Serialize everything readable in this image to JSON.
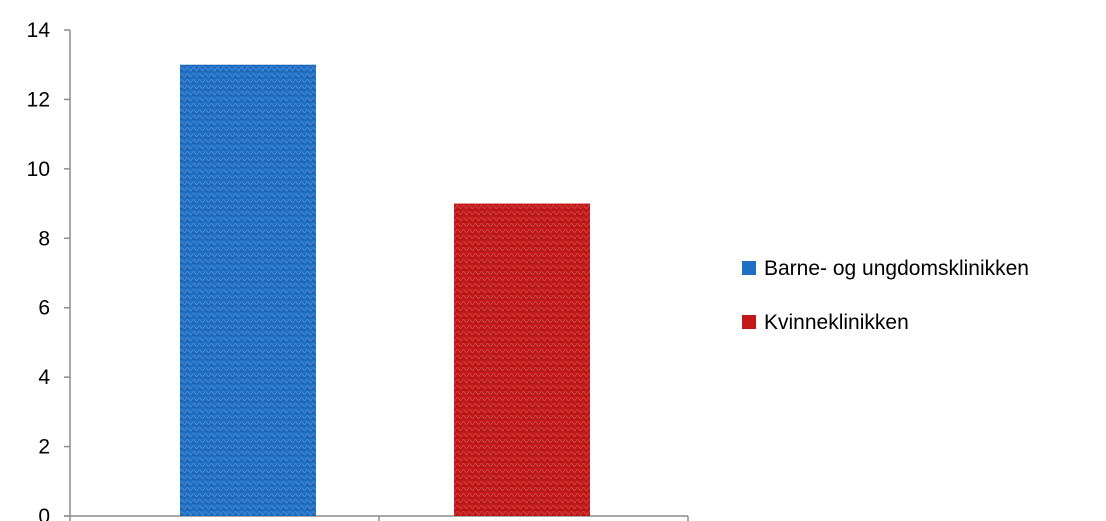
{
  "chart_data": {
    "type": "bar",
    "title": "",
    "xlabel": "",
    "ylabel": "",
    "ylim": [
      0,
      14
    ],
    "yticks": [
      0,
      2,
      4,
      6,
      8,
      10,
      12,
      14
    ],
    "grid": false,
    "legend_position": "right",
    "series": [
      {
        "name": "Barne- og ungdomsklinikken",
        "value": 13,
        "color": "#1f6fc5"
      },
      {
        "name": "Kvinneklinikken",
        "value": 9,
        "color": "#c41818"
      }
    ]
  }
}
